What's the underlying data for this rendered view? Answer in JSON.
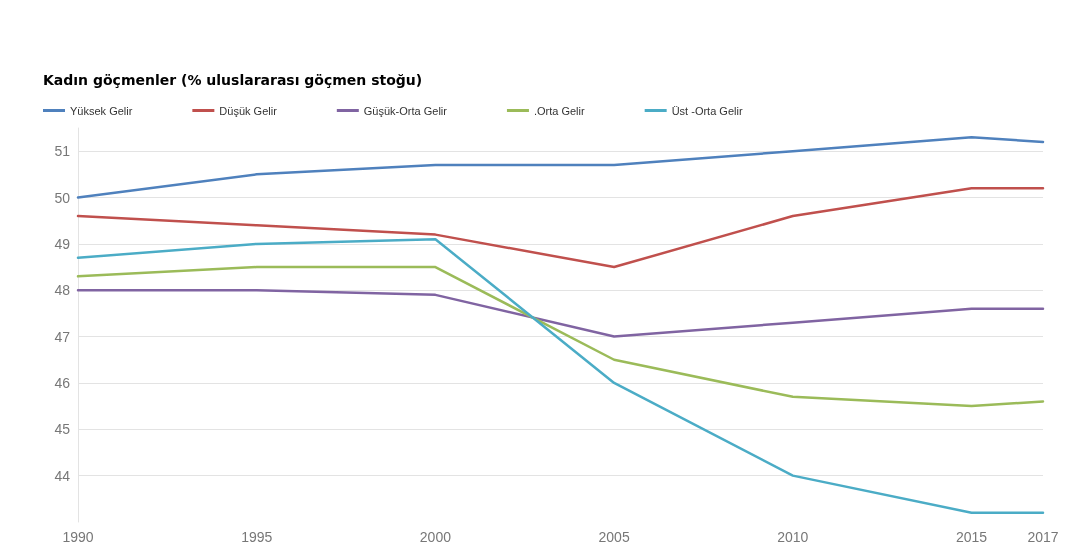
{
  "chart_data": {
    "type": "line",
    "title": "Kadın göçmenler (% uluslararası göçmen stoğu)",
    "x": [
      1990,
      1995,
      2000,
      2005,
      2010,
      2015,
      2017
    ],
    "series": [
      {
        "name": "Yüksek Gelir",
        "color": "#4f81bd",
        "values": [
          50.0,
          50.5,
          50.7,
          50.7,
          51.0,
          51.3,
          51.2
        ]
      },
      {
        "name": "Düşük Gelir",
        "color": "#c0504d",
        "values": [
          49.6,
          49.4,
          49.2,
          48.5,
          49.6,
          50.2,
          50.2
        ]
      },
      {
        "name": "Güşük-Orta Gelir",
        "color": "#8064a2",
        "values": [
          48.0,
          48.0,
          47.9,
          47.0,
          47.3,
          47.6,
          47.6
        ]
      },
      {
        "name": ".Orta Gelir",
        "color": "#9bbb59",
        "values": [
          48.3,
          48.5,
          48.5,
          46.5,
          45.7,
          45.5,
          45.6
        ]
      },
      {
        "name": "Üst -Orta Gelir",
        "color": "#4bacc6",
        "values": [
          48.7,
          49.0,
          49.1,
          46.0,
          44.0,
          43.2,
          43.2
        ]
      }
    ],
    "xlim": [
      1990,
      2017
    ],
    "xticks": [
      1990,
      1995,
      2000,
      2005,
      2010,
      2015,
      2017
    ],
    "ylim": [
      43,
      51.5
    ],
    "yticks": [
      44,
      45,
      46,
      47,
      48,
      49,
      50,
      51
    ],
    "grid": "y",
    "legend": "top left",
    "marker": "none",
    "line_style": "solid"
  }
}
